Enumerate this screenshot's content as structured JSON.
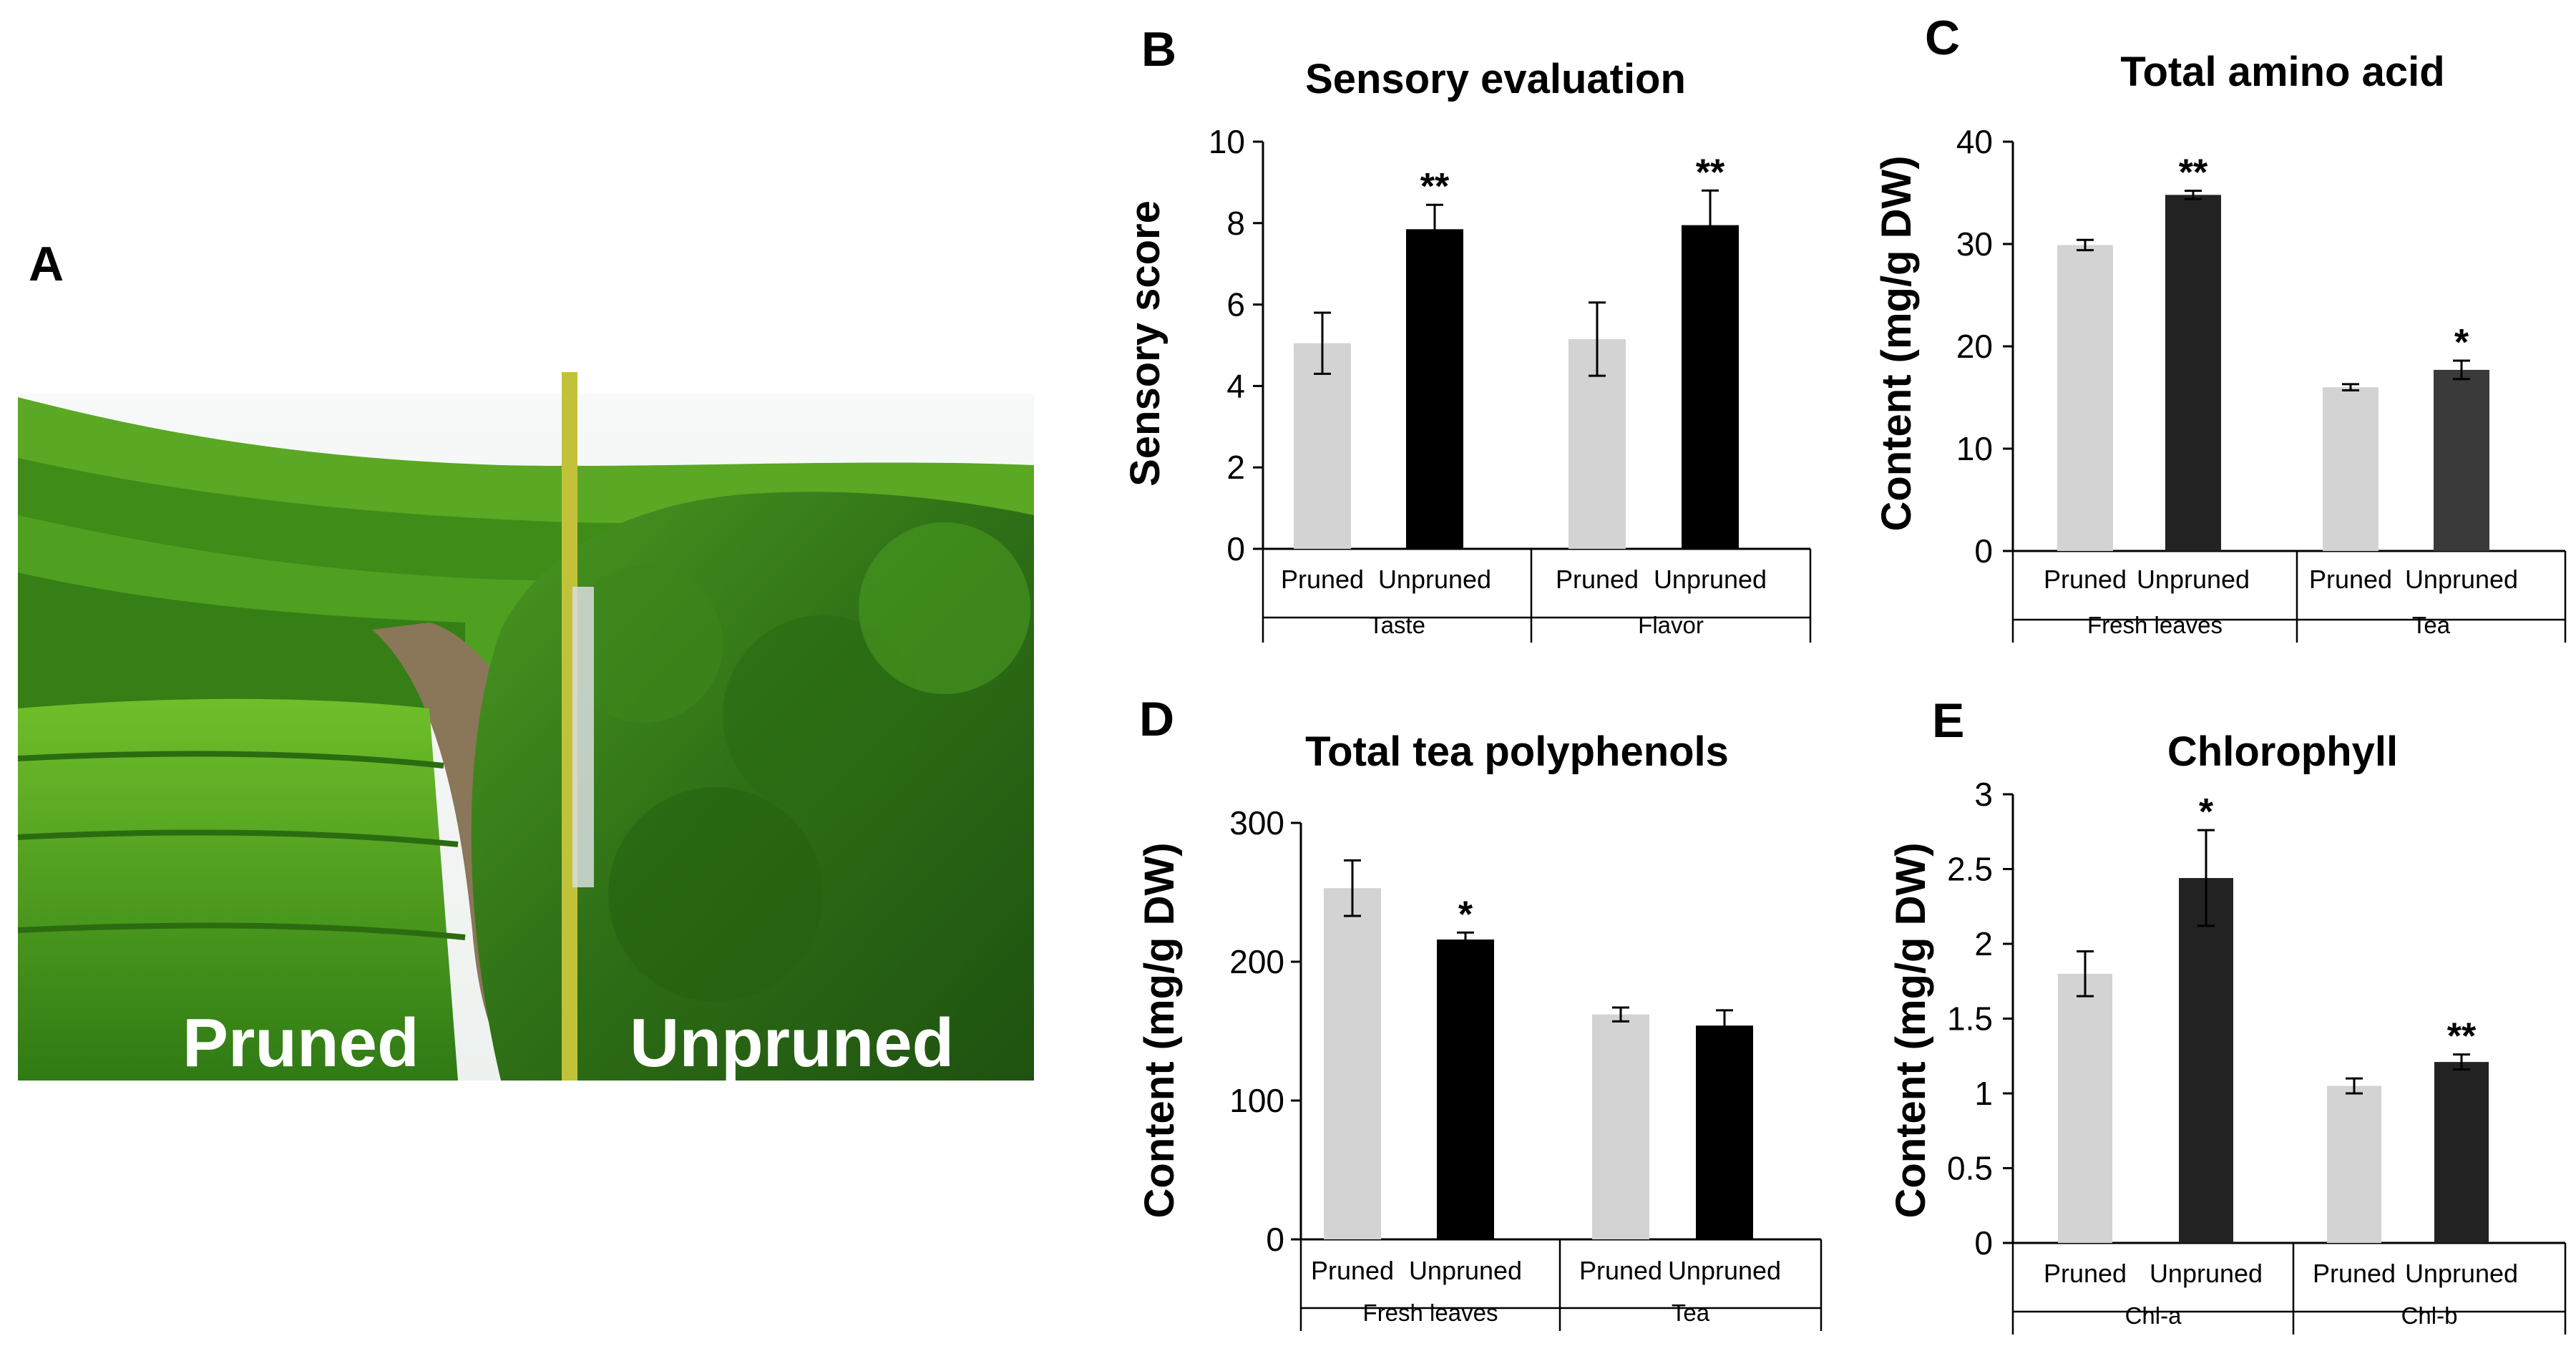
{
  "panel_a": {
    "letter": "A",
    "label_left": "Pruned",
    "label_right": "Unpruned"
  },
  "chart_data": [
    {
      "panel": "B",
      "type": "bar",
      "title": "Sensory evaluation",
      "ylabel": "Sensory score",
      "ylim": [
        0,
        10
      ],
      "yticks": [
        0,
        2,
        4,
        6,
        8,
        10
      ],
      "grid": false,
      "groups": [
        {
          "name": "Taste",
          "bars": [
            {
              "label": "Pruned",
              "value": 5.05,
              "error": 0.75,
              "color": "#d3d3d3",
              "sig": ""
            },
            {
              "label": "Unpruned",
              "value": 7.85,
              "error": 0.6,
              "color": "#000000",
              "sig": "**"
            }
          ]
        },
        {
          "name": "Flavor",
          "bars": [
            {
              "label": "Pruned",
              "value": 5.15,
              "error": 0.9,
              "color": "#d3d3d3",
              "sig": ""
            },
            {
              "label": "Unpruned",
              "value": 7.95,
              "error": 0.85,
              "color": "#000000",
              "sig": "**"
            }
          ]
        }
      ]
    },
    {
      "panel": "C",
      "type": "bar",
      "title": "Total amino acid",
      "ylabel": "Content (mg/g DW)",
      "ylim": [
        0,
        40
      ],
      "yticks": [
        0,
        10,
        20,
        30,
        40
      ],
      "grid": false,
      "groups": [
        {
          "name": "Fresh leaves",
          "bars": [
            {
              "label": "Pruned",
              "value": 29.9,
              "error": 0.5,
              "color": "#d3d3d3",
              "sig": ""
            },
            {
              "label": "Unpruned",
              "value": 34.8,
              "error": 0.4,
              "color": "#222222",
              "sig": "**"
            }
          ]
        },
        {
          "name": "Tea",
          "bars": [
            {
              "label": "Pruned",
              "value": 16.0,
              "error": 0.3,
              "color": "#d3d3d3",
              "sig": ""
            },
            {
              "label": "Unpruned",
              "value": 17.7,
              "error": 0.9,
              "color": "#3a3a3a",
              "sig": "*"
            }
          ]
        }
      ]
    },
    {
      "panel": "D",
      "type": "bar",
      "title": "Total tea polyphenols",
      "ylabel": "Content (mg/g DW)",
      "ylim": [
        0,
        300
      ],
      "yticks": [
        0,
        100,
        200,
        300
      ],
      "grid": false,
      "groups": [
        {
          "name": "Fresh leaves",
          "bars": [
            {
              "label": "Pruned",
              "value": 253,
              "error": 20,
              "color": "#d3d3d3",
              "sig": ""
            },
            {
              "label": "Unpruned",
              "value": 216,
              "error": 5,
              "color": "#000000",
              "sig": "*"
            }
          ]
        },
        {
          "name": "Tea",
          "bars": [
            {
              "label": "Pruned",
              "value": 162,
              "error": 5,
              "color": "#d3d3d3",
              "sig": ""
            },
            {
              "label": "Unpruned",
              "value": 154,
              "error": 11,
              "color": "#000000",
              "sig": ""
            }
          ]
        }
      ]
    },
    {
      "panel": "E",
      "type": "bar",
      "title": "Chlorophyll",
      "ylabel": "Content (mg/g DW)",
      "ylim": [
        0,
        3
      ],
      "yticks": [
        0,
        0.5,
        1,
        1.5,
        2,
        2.5,
        3
      ],
      "grid": false,
      "groups": [
        {
          "name": "Chl-a",
          "bars": [
            {
              "label": "Pruned",
              "value": 1.8,
              "error": 0.15,
              "color": "#d3d3d3",
              "sig": ""
            },
            {
              "label": "Unpruned",
              "value": 2.44,
              "error": 0.32,
              "color": "#222222",
              "sig": "*"
            }
          ]
        },
        {
          "name": "Chl-b",
          "bars": [
            {
              "label": "Pruned",
              "value": 1.05,
              "error": 0.05,
              "color": "#d3d3d3",
              "sig": ""
            },
            {
              "label": "Unpruned",
              "value": 1.21,
              "error": 0.05,
              "color": "#222222",
              "sig": "**"
            }
          ]
        }
      ]
    }
  ]
}
